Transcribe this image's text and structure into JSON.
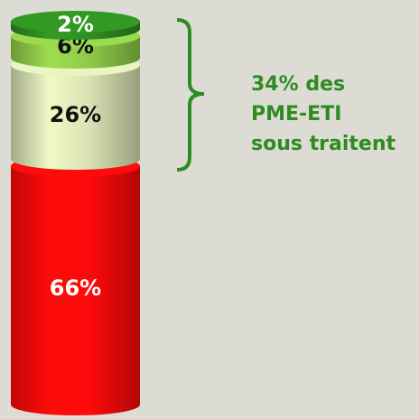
{
  "chart_data": {
    "type": "bar",
    "stacked": true,
    "values": [
      66,
      26,
      6,
      2
    ],
    "value_labels": [
      "66%",
      "26%",
      "6%",
      "2%"
    ],
    "colors": [
      "#ff0a0a",
      "#d9e3b4",
      "#8fcb48",
      "#2f8e22"
    ],
    "label_colors": [
      "#ffffff",
      "#111111",
      "#111111",
      "#ffffff"
    ],
    "annotation": [
      "34% des",
      "PME-ETI",
      "sous traitent"
    ],
    "annotation_color": "#2e8b22"
  }
}
